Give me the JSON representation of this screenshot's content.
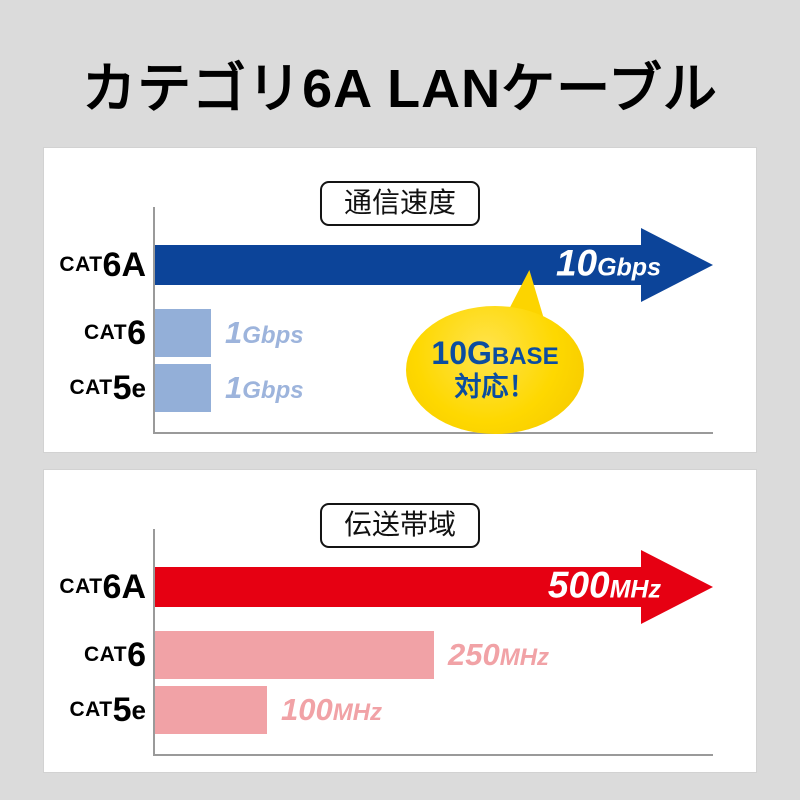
{
  "title": "カテゴリ6A LANケーブル",
  "colors": {
    "background": "#dbdbdb",
    "card": "#ffffff",
    "arrow_blue": "#0c4499",
    "bar_lightblue": "#93afd8",
    "arrow_red": "#e60012",
    "bar_pink": "#f1a2a6",
    "balloon_yellow": "#fed800",
    "balloon_text_blue": "#0b4da0",
    "axis_gray": "#9a9a9a"
  },
  "chart_data": [
    {
      "type": "bar",
      "orientation": "horizontal",
      "title": "通信速度",
      "categories": [
        "CAT6A",
        "CAT6",
        "CAT5e"
      ],
      "values": [
        10,
        1,
        1
      ],
      "unit": "Gbps",
      "value_labels": [
        "10Gbps",
        "1Gbps",
        "1Gbps"
      ],
      "xlim": [
        0,
        10
      ],
      "bar_colors": [
        "#0c4499",
        "#93afd8",
        "#93afd8"
      ],
      "top_bar_style": "arrow",
      "grid": false,
      "annotation": "10GBASE対応！"
    },
    {
      "type": "bar",
      "orientation": "horizontal",
      "title": "伝送帯域",
      "categories": [
        "CAT6A",
        "CAT6",
        "CAT5e"
      ],
      "values": [
        500,
        250,
        100
      ],
      "unit": "MHz",
      "value_labels": [
        "500MHz",
        "250MHz",
        "100MHz"
      ],
      "xlim": [
        0,
        500
      ],
      "bar_colors": [
        "#e60012",
        "#f1a2a6",
        "#f1a2a6"
      ],
      "top_bar_style": "arrow",
      "grid": false
    }
  ],
  "panels": [
    {
      "header": "通信速度",
      "rows": [
        {
          "cat_prefix": "CAT",
          "cat_num": "6A",
          "cat_suffix": "",
          "value_num": "10",
          "value_unit": "Gbps"
        },
        {
          "cat_prefix": "CAT",
          "cat_num": "6",
          "cat_suffix": "",
          "value_num": "1",
          "value_unit": "Gbps"
        },
        {
          "cat_prefix": "CAT",
          "cat_num": "5",
          "cat_suffix": "e",
          "value_num": "1",
          "value_unit": "Gbps"
        }
      ],
      "balloon": {
        "top_big": "10G",
        "top_small": "BASE",
        "bottom": "対応！"
      }
    },
    {
      "header": "伝送帯域",
      "rows": [
        {
          "cat_prefix": "CAT",
          "cat_num": "6A",
          "cat_suffix": "",
          "value_num": "500",
          "value_unit": "MHz"
        },
        {
          "cat_prefix": "CAT",
          "cat_num": "6",
          "cat_suffix": "",
          "value_num": "250",
          "value_unit": "MHz"
        },
        {
          "cat_prefix": "CAT",
          "cat_num": "5",
          "cat_suffix": "e",
          "value_num": "100",
          "value_unit": "MHz"
        }
      ]
    }
  ]
}
